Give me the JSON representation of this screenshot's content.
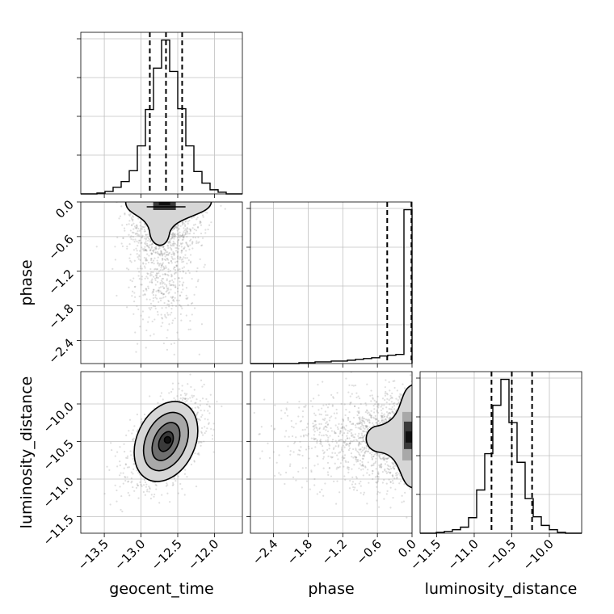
{
  "chart_data": {
    "type": "corner",
    "parameters": [
      "geocent_time",
      "phase",
      "luminosity_distance"
    ],
    "axis_labels": {
      "x": [
        "geocent_time",
        "phase",
        "luminosity_distance"
      ],
      "y": [
        "",
        "phase",
        "luminosity_distance"
      ]
    },
    "grid": true,
    "ranges": {
      "geocent_time": [
        -13.82,
        -11.62
      ],
      "phase": [
        -2.8,
        0.0
      ],
      "luminosity_distance": [
        -11.72,
        -9.57
      ]
    },
    "ticks": {
      "geocent_time": [
        -13.5,
        -13.0,
        -12.5,
        -12.0
      ],
      "phase": [
        -2.4,
        -1.8,
        -1.2,
        -0.6,
        0.0
      ],
      "luminosity_distance": [
        -11.5,
        -11.0,
        -10.5,
        -10.0
      ]
    },
    "tick_labels": {
      "geocent_time": [
        "−13.5",
        "−13.0",
        "−12.5",
        "−12.0"
      ],
      "phase": [
        "−2.4",
        "−1.8",
        "−1.2",
        "−0.6",
        "0.0"
      ],
      "luminosity_distance": [
        "−11.5",
        "−11.0",
        "−10.5",
        "−10.0"
      ]
    },
    "quantiles": {
      "geocent_time": [
        -12.88,
        -12.66,
        -12.44
      ],
      "phase": [
        -0.43,
        -0.01
      ],
      "luminosity_distance": [
        -10.77,
        -10.5,
        -10.23
      ]
    },
    "histograms": {
      "geocent_time": {
        "bin_edges": [
          -13.82,
          -13.71,
          -13.6,
          -13.49,
          -13.38,
          -13.27,
          -13.16,
          -13.05,
          -12.94,
          -12.83,
          -12.72,
          -12.61,
          -12.5,
          -12.39,
          -12.28,
          -12.17,
          -12.06,
          -11.95,
          -11.84,
          -11.73,
          -11.62
        ],
        "counts": [
          0,
          0,
          1,
          3,
          8,
          15,
          28,
          58,
          102,
          152,
          186,
          148,
          103,
          58,
          27,
          13,
          5,
          2,
          0,
          0
        ]
      },
      "phase": {
        "bin_edges": [
          -2.8,
          -2.66,
          -2.52,
          -2.38,
          -2.24,
          -2.1,
          -1.96,
          -1.82,
          -1.68,
          -1.54,
          -1.4,
          -1.26,
          -1.12,
          -0.98,
          -0.84,
          -0.7,
          -0.56,
          -0.42,
          -0.28,
          -0.14,
          0.0
        ],
        "counts": [
          0,
          0,
          0,
          0,
          0,
          0,
          1,
          1,
          2,
          2,
          3,
          3,
          4,
          5,
          6,
          7,
          9,
          10,
          11,
          185
        ]
      },
      "luminosity_distance": {
        "bin_edges": [
          -11.72,
          -11.6125,
          -11.505,
          -11.3975,
          -11.29,
          -11.1825,
          -11.075,
          -10.9675,
          -10.86,
          -10.7525,
          -10.645,
          -10.5375,
          -10.43,
          -10.3225,
          -10.215,
          -10.1075,
          -10.0,
          -9.8925,
          -9.785,
          -9.6775,
          -9.57
        ],
        "counts": [
          0,
          0,
          1,
          2,
          4,
          7,
          18,
          50,
          92,
          148,
          178,
          128,
          82,
          40,
          19,
          9,
          4,
          1,
          0,
          0
        ]
      }
    },
    "scatter_summary": {
      "geocent_time_vs_phase": {
        "x_center": -12.68,
        "x_spread": 0.22,
        "phase_peak": 0.0,
        "phase_tail_to": -2.5
      },
      "geocent_time_vs_luminosity_distance": {
        "x_center": -12.66,
        "y_center": -10.5,
        "x_spread": 0.25,
        "y_spread": 0.28,
        "correlation": 0.5
      },
      "phase_vs_luminosity_distance": {
        "phase_peak": 0.0,
        "y_center": -10.45,
        "y_spread": 0.3
      }
    },
    "colors": {
      "line": "#000000",
      "grid": "#c0c0c0",
      "scatter": "#808080",
      "density": [
        "#ffffff",
        "#d6d6d6",
        "#a8a8a8",
        "#6f6f6f",
        "#3a3a3a",
        "#101010"
      ]
    }
  }
}
